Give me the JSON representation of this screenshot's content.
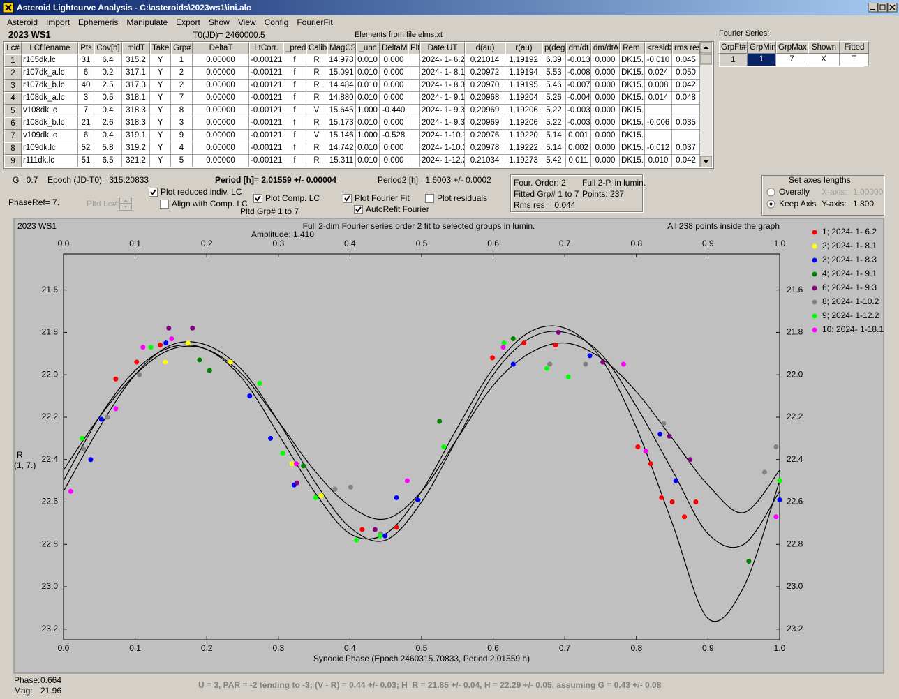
{
  "window": {
    "title": "Asteroid Lightcurve Analysis - C:\\asteroids\\2023ws1\\ini.alc"
  },
  "menu": [
    "Asteroid",
    "Import",
    "Ephemeris",
    "Manipulate",
    "Export",
    "Show",
    "View",
    "Config",
    "FourierFit"
  ],
  "header": {
    "object": "2023 WS1",
    "t0": "T0(JD)= 2460000.5",
    "elements": "Elements from file elms.xt"
  },
  "table": {
    "columns": [
      "Lc#",
      "LCfilename",
      "Pts",
      "Cov[h]",
      "midT",
      "Take",
      "Grp#",
      "DeltaT",
      "LtCorr.",
      "_pred.",
      "Calib.",
      "MagCS",
      "_unc",
      "DeltaM",
      "Plt",
      "Date UT",
      "d(au)",
      "r(au)",
      "p(deg)",
      "dm/dt",
      "dm/dtA",
      "Rem.",
      "<resid>",
      "rms res"
    ],
    "rows": [
      [
        "1",
        "r105dk.lc",
        "31",
        "6.4",
        "315.2",
        "Y",
        "1",
        "0.00000",
        "-0.00121",
        "f",
        "R",
        "14.978",
        "0.010",
        "0.000",
        null,
        "2024- 1- 6.2",
        "0.21014",
        "1.19192",
        "6.39",
        "-0.013",
        "0.000",
        "DK15..",
        "-0.010",
        "0.045"
      ],
      [
        "2",
        "r107dk_a.lc",
        "6",
        "0.2",
        "317.1",
        "Y",
        "2",
        "0.00000",
        "-0.00121",
        "f",
        "R",
        "15.091",
        "0.010",
        "0.000",
        null,
        "2024- 1- 8.1",
        "0.20972",
        "1.19194",
        "5.53",
        "-0.008",
        "0.000",
        "DK15..",
        "0.024",
        "0.050"
      ],
      [
        "3",
        "r107dk_b.lc",
        "40",
        "2.5",
        "317.3",
        "Y",
        "2",
        "0.00000",
        "-0.00121",
        "f",
        "R",
        "14.484",
        "0.010",
        "0.000",
        null,
        "2024- 1- 8.3",
        "0.20970",
        "1.19195",
        "5.46",
        "-0.007",
        "0.000",
        "DK15..",
        "0.008",
        "0.042"
      ],
      [
        "4",
        "r108dk_a.lc",
        "3",
        "0.5",
        "318.1",
        "Y",
        "7",
        "0.00000",
        "-0.00121",
        "f",
        "R",
        "14.880",
        "0.010",
        "0.000",
        null,
        "2024- 1- 9.1",
        "0.20968",
        "1.19204",
        "5.26",
        "-0.004",
        "0.000",
        "DK15..",
        "0.014",
        "0.048"
      ],
      [
        "5",
        "v108dk.lc",
        "7",
        "0.4",
        "318.3",
        "Y",
        "8",
        "0.00000",
        "-0.00121",
        "f",
        "V",
        "15.645",
        "1.000",
        "-0.440",
        null,
        "2024- 1- 9.3",
        "0.20969",
        "1.19206",
        "5.22",
        "-0.003",
        "0.000",
        "DK15..",
        null,
        null
      ],
      [
        "6",
        "r108dk_b.lc",
        "21",
        "2.6",
        "318.3",
        "Y",
        "3",
        "0.00000",
        "-0.00121",
        "f",
        "R",
        "15.173",
        "0.010",
        "0.000",
        null,
        "2024- 1- 9.3",
        "0.20969",
        "1.19206",
        "5.22",
        "-0.003",
        "0.000",
        "DK15..",
        "-0.006",
        "0.035"
      ],
      [
        "7",
        "v109dk.lc",
        "6",
        "0.4",
        "319.1",
        "Y",
        "9",
        "0.00000",
        "-0.00121",
        "f",
        "V",
        "15.146",
        "1.000",
        "-0.528",
        null,
        "2024- 1-10.1",
        "0.20976",
        "1.19220",
        "5.14",
        "0.001",
        "0.000",
        "DK15..",
        null,
        null
      ],
      [
        "8",
        "r109dk.lc",
        "52",
        "5.8",
        "319.2",
        "Y",
        "4",
        "0.00000",
        "-0.00121",
        "f",
        "R",
        "14.742",
        "0.010",
        "0.000",
        null,
        "2024- 1-10.2",
        "0.20978",
        "1.19222",
        "5.14",
        "0.002",
        "0.000",
        "DK15..",
        "-0.012",
        "0.037"
      ],
      [
        "9",
        "r111dk.lc",
        "51",
        "6.5",
        "321.2",
        "Y",
        "5",
        "0.00000",
        "-0.00121",
        "f",
        "R",
        "15.311",
        "0.010",
        "0.000",
        null,
        "2024- 1-12.2",
        "0.21034",
        "1.19273",
        "5.42",
        "0.011",
        "0.000",
        "DK15..",
        "0.010",
        "0.042"
      ]
    ]
  },
  "fourier": {
    "label": "Fourier Series:",
    "columns": [
      "GrpFt#",
      "GrpMin",
      "GrpMax",
      "Shown",
      "Fitted"
    ],
    "rows": [
      [
        "1",
        "1",
        "7",
        "X",
        "T"
      ]
    ]
  },
  "info": {
    "g": "G= 0.7",
    "epoch": "Epoch (JD-T0)= 315.20833",
    "period": "Period [h]= 2.01559 +/- 0.00004",
    "period2": "Period2 [h]= 1.6003 +/- 0.0002",
    "phase_ref": "PhaseRef= 7.",
    "pltd_lc": "Pltd Lc#:",
    "pltd_grp": "Pltd Grp#  1   to   7"
  },
  "checkboxes": [
    {
      "label": "Plot reduced indiv. LC",
      "checked": true
    },
    {
      "label": "Align with Comp. LC",
      "checked": false
    },
    {
      "label": "Plot Comp. LC",
      "checked": true
    },
    {
      "label": "Plot Fourier Fit",
      "checked": true
    },
    {
      "label": "AutoRefit Fourier",
      "checked": true
    },
    {
      "label": "Plot residuals",
      "checked": false
    }
  ],
  "fit_box": {
    "order": "Four. Order:  2",
    "mode": "Full 2-P, in lumin.",
    "fitted": "Fitted Grp# 1 to 7",
    "points": "Points: 237",
    "rms": "Rms res     = 0.044"
  },
  "axes_box": {
    "title": "Set axes lengths",
    "options": [
      {
        "label": "Overally",
        "selected": false
      },
      {
        "label": "Keep Axis",
        "selected": true
      }
    ],
    "x_label": "X-axis:",
    "x_value": "1.00000",
    "y_label": "Y-axis:",
    "y_value": "1.800"
  },
  "chart_data": {
    "type": "scatter",
    "object": "2023 WS1",
    "title": "Full 2-dim Fourier series order 2 fit to selected groups in lumin.",
    "subtitle": "Amplitude: 1.410",
    "note": "All 238 points inside the graph",
    "x_label": "Synodic Phase (Epoch 2460315.70833, Period 2.01559 h)",
    "y_label": "R",
    "y_label2": "(1, 7.)",
    "xlim": [
      0,
      1
    ],
    "xticks": [
      {
        "value": 0,
        "label": "0.0"
      },
      0.1,
      0.2,
      0.3,
      0.4,
      0.5,
      0.6,
      0.7,
      0.8,
      0.9,
      {
        "value": 1,
        "label": "1.0"
      }
    ],
    "ylim": [
      23.25,
      21.43
    ],
    "yticks": [
      21.6,
      21.8,
      {
        "value": 22,
        "label": "22.0"
      },
      22.2,
      22.4,
      22.6,
      22.8,
      {
        "value": 23,
        "label": "23.0"
      },
      23.2
    ],
    "series": [
      {
        "name": "1; 2024- 1- 6.2",
        "color": "#ff0000",
        "x": [
          0.073,
          0.102,
          0.135,
          0.417,
          0.465,
          0.599,
          0.643,
          0.687,
          0.802,
          0.82,
          0.835,
          0.85,
          0.867,
          0.883
        ],
        "values": [
          22.02,
          21.94,
          21.86,
          22.73,
          22.72,
          21.92,
          21.85,
          21.86,
          22.34,
          22.42,
          22.58,
          22.6,
          22.67,
          22.6
        ]
      },
      {
        "name": "2; 2024- 1- 8.1",
        "color": "#ffff00",
        "x": [
          0.142,
          0.174,
          0.233,
          0.319,
          0.36
        ],
        "values": [
          21.94,
          21.85,
          21.94,
          22.42,
          22.57
        ]
      },
      {
        "name": "3; 2024- 1- 8.3",
        "color": "#0000ff",
        "x": [
          0.038,
          0.053,
          0.143,
          0.26,
          0.289,
          0.322,
          0.449,
          0.465,
          0.495,
          0.628,
          0.735,
          0.833,
          0.855,
          1.0
        ],
        "values": [
          22.4,
          22.21,
          21.85,
          22.1,
          22.3,
          22.52,
          22.76,
          22.58,
          22.59,
          21.95,
          21.91,
          22.28,
          22.5,
          22.59
        ]
      },
      {
        "name": "4; 2024- 1- 9.1",
        "color": "#008000",
        "x": [
          0.19,
          0.204,
          0.335,
          0.525,
          0.628,
          0.957
        ],
        "values": [
          21.93,
          21.98,
          22.43,
          22.22,
          21.83,
          22.88
        ]
      },
      {
        "name": "6; 2024- 1- 9.3",
        "color": "#800080",
        "x": [
          0.147,
          0.18,
          0.326,
          0.435,
          0.691,
          0.753,
          0.846,
          0.875
        ],
        "values": [
          21.78,
          21.78,
          22.51,
          22.73,
          21.8,
          21.94,
          22.29,
          22.4
        ]
      },
      {
        "name": "8; 2024- 1-10.2",
        "color": "#808080",
        "x": [
          0.028,
          0.061,
          0.106,
          0.379,
          0.401,
          0.443,
          0.679,
          0.729,
          0.838,
          0.979,
          0.995
        ],
        "values": [
          22.35,
          22.2,
          22.0,
          22.54,
          22.53,
          22.75,
          21.95,
          21.95,
          22.23,
          22.46,
          22.34
        ]
      },
      {
        "name": "9; 2024- 1-12.2",
        "color": "#00ff00",
        "x": [
          0.026,
          0.122,
          0.274,
          0.306,
          0.352,
          0.409,
          0.442,
          0.531,
          0.615,
          0.675,
          0.705,
          1.0
        ],
        "values": [
          22.3,
          21.87,
          22.04,
          22.37,
          22.58,
          22.78,
          22.76,
          22.34,
          21.85,
          21.97,
          22.01,
          22.5
        ]
      },
      {
        "name": "10; 2024- 1-18.1",
        "color": "#ff00ff",
        "x": [
          0.01,
          0.073,
          0.111,
          0.151,
          0.325,
          0.48,
          0.614,
          0.782,
          0.813,
          0.995
        ],
        "values": [
          22.55,
          22.16,
          21.87,
          21.83,
          22.42,
          22.5,
          21.87,
          21.95,
          22.36,
          22.67
        ]
      }
    ],
    "curve_color": "#000000",
    "curves": [
      {
        "x": [
          0,
          0.05,
          0.1,
          0.15,
          0.2,
          0.25,
          0.3,
          0.35,
          0.4,
          0.45,
          0.5,
          0.55,
          0.6,
          0.65,
          0.7,
          0.75,
          0.8,
          0.85,
          0.9,
          0.95,
          1.0
        ],
        "values": [
          22.5,
          22.2,
          21.98,
          21.87,
          21.88,
          22.02,
          22.28,
          22.55,
          22.75,
          22.75,
          22.55,
          22.25,
          21.97,
          21.8,
          21.78,
          21.92,
          22.25,
          22.7,
          23.15,
          23.0,
          22.5
        ]
      },
      {
        "x": [
          0,
          0.05,
          0.1,
          0.15,
          0.2,
          0.25,
          0.3,
          0.35,
          0.4,
          0.45,
          0.5,
          0.55,
          0.6,
          0.65,
          0.7,
          0.75,
          0.8,
          0.85,
          0.9,
          0.95,
          1.0
        ],
        "values": [
          22.45,
          22.2,
          22.0,
          21.88,
          21.88,
          22.0,
          22.22,
          22.45,
          22.62,
          22.68,
          22.55,
          22.3,
          22.05,
          21.9,
          21.85,
          21.92,
          22.08,
          22.3,
          22.52,
          22.65,
          22.45
        ]
      },
      {
        "x": [
          0,
          0.05,
          0.1,
          0.15,
          0.2,
          0.25,
          0.3,
          0.35,
          0.4,
          0.45,
          0.5,
          0.55,
          0.6,
          0.65,
          0.7,
          0.75,
          0.8,
          0.85,
          0.9,
          0.95,
          1.0
        ],
        "values": [
          22.55,
          22.25,
          22.0,
          21.86,
          21.86,
          21.98,
          22.22,
          22.5,
          22.72,
          22.78,
          22.6,
          22.3,
          22.0,
          21.83,
          21.8,
          21.9,
          22.15,
          22.45,
          22.75,
          22.8,
          22.55
        ]
      }
    ]
  },
  "status": {
    "phase_label": "Phase:",
    "phase": "0.664",
    "mag_label": "Mag:",
    "mag": "21.96",
    "line": "U = 3, PAR = -2 tending to -3; (V - R) = 0.44 +/- 0.03; H_R = 21.85 +/- 0.04, H = 22.29 +/- 0.05, assuming G = 0.43 +/- 0.08"
  }
}
